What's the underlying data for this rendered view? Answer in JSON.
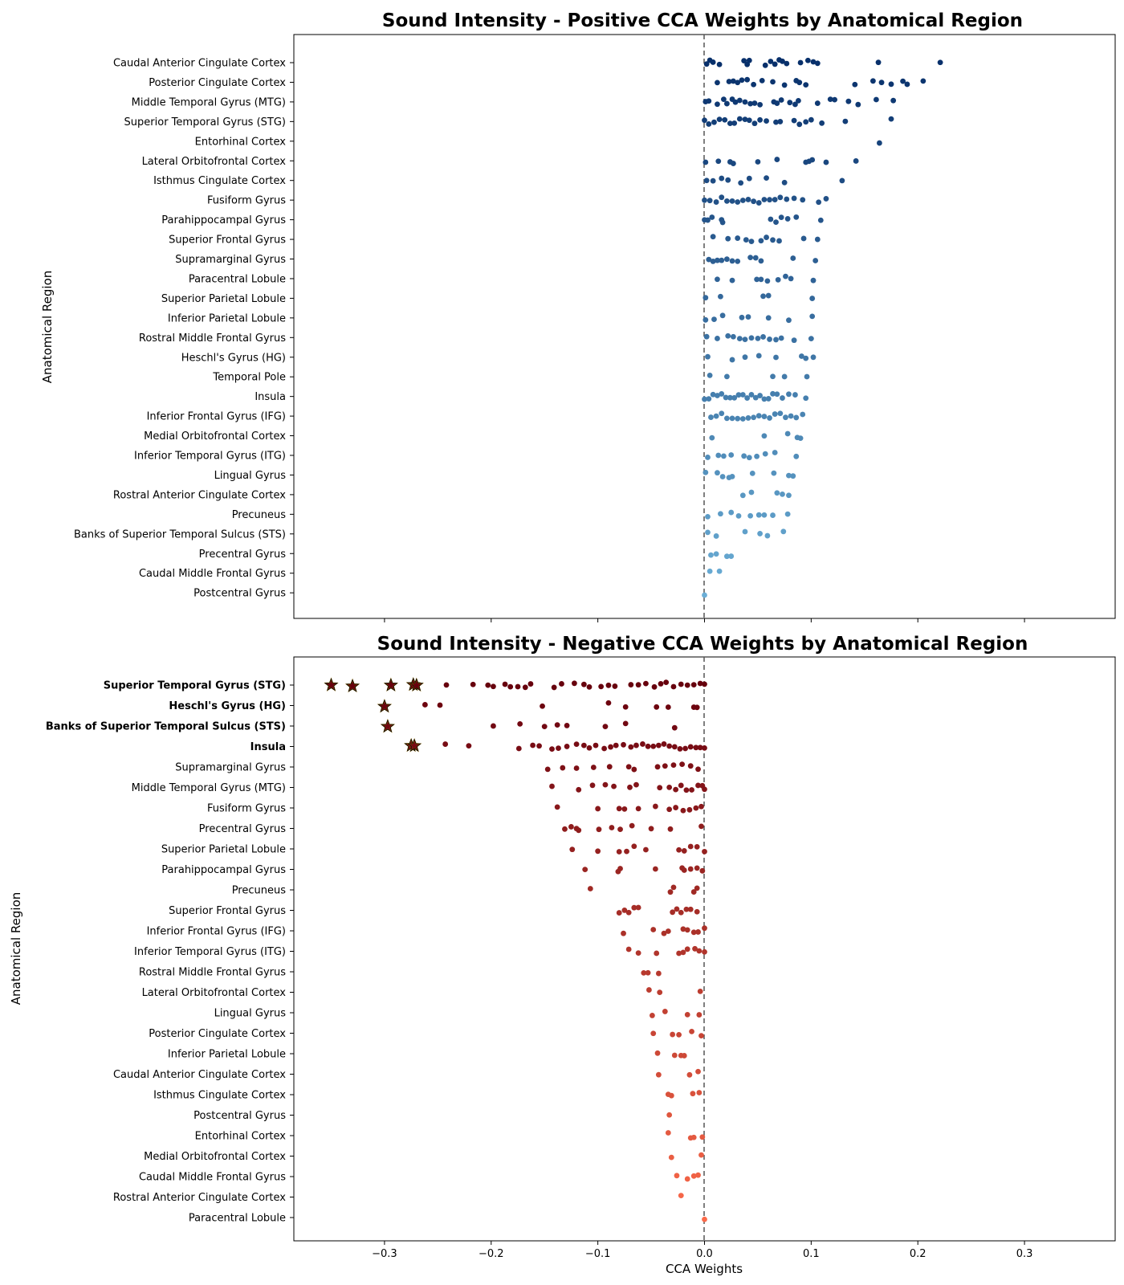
{
  "chart_data": [
    {
      "type": "scatter",
      "title": "Sound Intensity - Positive CCA Weights by Anatomical Region",
      "xlabel": "",
      "ylabel": "Anatomical Region",
      "xlim": [
        -0.385,
        0.385
      ],
      "xticks": [],
      "ref_line_x": 0,
      "color_dark": "#08306b",
      "color_light": "#6baed6",
      "regions": [
        {
          "name": "Caudal Anterior Cingulate Cortex",
          "values": [
            0.002,
            0.005,
            0.008,
            0.014,
            0.037,
            0.04,
            0.042,
            0.057,
            0.062,
            0.066,
            0.07,
            0.073,
            0.077,
            0.09,
            0.097,
            0.102,
            0.106,
            0.163,
            0.221
          ]
        },
        {
          "name": "Posterior Cingulate Cortex",
          "values": [
            0.012,
            0.023,
            0.027,
            0.031,
            0.035,
            0.04,
            0.046,
            0.054,
            0.064,
            0.075,
            0.086,
            0.089,
            0.095,
            0.141,
            0.158,
            0.166,
            0.175,
            0.186,
            0.19,
            0.205
          ]
        },
        {
          "name": "Middle Temporal Gyrus (MTG)",
          "values": [
            0.001,
            0.004,
            0.012,
            0.018,
            0.021,
            0.026,
            0.029,
            0.033,
            0.038,
            0.043,
            0.047,
            0.052,
            0.065,
            0.068,
            0.072,
            0.08,
            0.085,
            0.088,
            0.106,
            0.118,
            0.122,
            0.135,
            0.144,
            0.161,
            0.177
          ]
        },
        {
          "name": "Superior Temporal Gyrus (STG)",
          "values": [
            0.0,
            0.004,
            0.009,
            0.014,
            0.019,
            0.024,
            0.028,
            0.033,
            0.038,
            0.042,
            0.047,
            0.052,
            0.058,
            0.067,
            0.071,
            0.084,
            0.089,
            0.095,
            0.1,
            0.11,
            0.132,
            0.175
          ]
        },
        {
          "name": "Entorhinal Cortex",
          "values": [
            0.164
          ]
        },
        {
          "name": "Lateral Orbitofrontal Cortex",
          "values": [
            0.001,
            0.013,
            0.024,
            0.027,
            0.05,
            0.068,
            0.095,
            0.098,
            0.101,
            0.114,
            0.142
          ]
        },
        {
          "name": "Isthmus Cingulate Cortex",
          "values": [
            0.002,
            0.008,
            0.016,
            0.022,
            0.034,
            0.042,
            0.058,
            0.075,
            0.129
          ]
        },
        {
          "name": "Fusiform Gyrus",
          "values": [
            0.0,
            0.005,
            0.011,
            0.016,
            0.021,
            0.026,
            0.031,
            0.036,
            0.041,
            0.046,
            0.051,
            0.056,
            0.061,
            0.066,
            0.071,
            0.077,
            0.084,
            0.092,
            0.107,
            0.114
          ]
        },
        {
          "name": "Parahippocampal Gyrus",
          "values": [
            0.0,
            0.003,
            0.007,
            0.016,
            0.017,
            0.062,
            0.067,
            0.072,
            0.078,
            0.086,
            0.109
          ]
        },
        {
          "name": "Superior Frontal Gyrus",
          "values": [
            0.008,
            0.022,
            0.031,
            0.039,
            0.044,
            0.053,
            0.058,
            0.064,
            0.07,
            0.093,
            0.106
          ]
        },
        {
          "name": "Supramarginal Gyrus",
          "values": [
            0.004,
            0.008,
            0.012,
            0.016,
            0.021,
            0.026,
            0.031,
            0.043,
            0.048,
            0.053,
            0.083,
            0.104
          ]
        },
        {
          "name": "Paracentral Lobule",
          "values": [
            0.012,
            0.026,
            0.049,
            0.053,
            0.059,
            0.069,
            0.076,
            0.081,
            0.102
          ]
        },
        {
          "name": "Superior Parietal Lobule",
          "values": [
            0.001,
            0.015,
            0.055,
            0.06,
            0.101
          ]
        },
        {
          "name": "Inferior Parietal Lobule",
          "values": [
            0.001,
            0.009,
            0.017,
            0.035,
            0.041,
            0.06,
            0.079,
            0.101
          ]
        },
        {
          "name": "Rostral Middle Frontal Gyrus",
          "values": [
            0.002,
            0.012,
            0.022,
            0.027,
            0.033,
            0.038,
            0.044,
            0.05,
            0.055,
            0.061,
            0.067,
            0.072,
            0.084,
            0.1
          ]
        },
        {
          "name": "Heschl's Gyrus (HG)",
          "values": [
            0.003,
            0.026,
            0.038,
            0.051,
            0.067,
            0.091,
            0.095,
            0.102
          ]
        },
        {
          "name": "Temporal Pole",
          "values": [
            0.005,
            0.021,
            0.064,
            0.075,
            0.096
          ]
        },
        {
          "name": "Insula",
          "values": [
            0.0,
            0.004,
            0.008,
            0.012,
            0.016,
            0.02,
            0.024,
            0.028,
            0.032,
            0.036,
            0.04,
            0.044,
            0.048,
            0.052,
            0.056,
            0.06,
            0.064,
            0.068,
            0.073,
            0.079,
            0.085,
            0.095
          ]
        },
        {
          "name": "Inferior Frontal Gyrus (IFG)",
          "values": [
            0.006,
            0.011,
            0.016,
            0.021,
            0.026,
            0.031,
            0.036,
            0.041,
            0.046,
            0.051,
            0.056,
            0.061,
            0.066,
            0.071,
            0.076,
            0.081,
            0.086,
            0.092
          ]
        },
        {
          "name": "Medial Orbitofrontal Cortex",
          "values": [
            0.007,
            0.056,
            0.078,
            0.087,
            0.09
          ]
        },
        {
          "name": "Inferior Temporal Gyrus (ITG)",
          "values": [
            0.003,
            0.013,
            0.018,
            0.025,
            0.037,
            0.042,
            0.049,
            0.057,
            0.066,
            0.086
          ]
        },
        {
          "name": "Lingual Gyrus",
          "values": [
            0.001,
            0.012,
            0.017,
            0.023,
            0.026,
            0.045,
            0.065,
            0.079,
            0.083
          ]
        },
        {
          "name": "Rostral Anterior Cingulate Cortex",
          "values": [
            0.036,
            0.044,
            0.068,
            0.073,
            0.079
          ]
        },
        {
          "name": "Precuneus",
          "values": [
            0.003,
            0.015,
            0.025,
            0.032,
            0.043,
            0.051,
            0.056,
            0.064,
            0.078
          ]
        },
        {
          "name": "Banks of Superior Temporal Sulcus (STS)",
          "values": [
            0.003,
            0.011,
            0.038,
            0.052,
            0.059,
            0.074
          ]
        },
        {
          "name": "Precentral Gyrus",
          "values": [
            0.006,
            0.011,
            0.021,
            0.025
          ]
        },
        {
          "name": "Caudal Middle Frontal Gyrus",
          "values": [
            0.005,
            0.014
          ]
        },
        {
          "name": "Postcentral Gyrus",
          "values": [
            0.0
          ]
        }
      ]
    },
    {
      "type": "scatter",
      "title": "Sound Intensity - Negative CCA Weights by Anatomical Region",
      "xlabel": "CCA Weights",
      "ylabel": "Anatomical Region",
      "xlim": [
        -0.385,
        0.385
      ],
      "xticks": [
        "−0.3",
        "−0.2",
        "−0.1",
        "0.0",
        "0.1",
        "0.2",
        "0.3"
      ],
      "xtick_values": [
        -0.3,
        -0.2,
        -0.1,
        0.0,
        0.1,
        0.2,
        0.3
      ],
      "ref_line_x": 0,
      "color_dark": "#67000d",
      "color_light": "#fb6a4a",
      "star_fill": "#b8860b",
      "regions": [
        {
          "name": "Superior Temporal Gyrus (STG)",
          "bold": true,
          "stars": [
            -0.35,
            -0.33,
            -0.294,
            -0.273,
            -0.27
          ],
          "values": [
            -0.242,
            -0.217,
            -0.203,
            -0.198,
            -0.187,
            -0.182,
            -0.175,
            -0.168,
            -0.163,
            -0.141,
            -0.134,
            -0.122,
            -0.113,
            -0.108,
            -0.097,
            -0.09,
            -0.084,
            -0.069,
            -0.062,
            -0.055,
            -0.047,
            -0.041,
            -0.036,
            -0.029,
            -0.022,
            -0.016,
            -0.01,
            -0.004,
            0.0
          ]
        },
        {
          "name": "Heschl's Gyrus (HG)",
          "bold": true,
          "stars": [
            -0.3
          ],
          "values": [
            -0.262,
            -0.248,
            -0.152,
            -0.09,
            -0.074,
            -0.045,
            -0.034,
            -0.01,
            -0.007
          ]
        },
        {
          "name": "Banks of Superior Temporal Sulcus (STS)",
          "bold": true,
          "stars": [
            -0.297
          ],
          "values": [
            -0.198,
            -0.173,
            -0.15,
            -0.138,
            -0.129,
            -0.093,
            -0.074,
            -0.028
          ]
        },
        {
          "name": "Insula",
          "bold": true,
          "stars": [
            -0.275,
            -0.272
          ],
          "values": [
            -0.243,
            -0.221,
            -0.174,
            -0.161,
            -0.155,
            -0.143,
            -0.137,
            -0.129,
            -0.12,
            -0.113,
            -0.108,
            -0.102,
            -0.094,
            -0.088,
            -0.083,
            -0.076,
            -0.069,
            -0.064,
            -0.058,
            -0.053,
            -0.048,
            -0.043,
            -0.038,
            -0.033,
            -0.028,
            -0.023,
            -0.018,
            -0.013,
            -0.008,
            -0.004,
            0.0
          ]
        },
        {
          "name": "Supramarginal Gyrus",
          "values": [
            -0.147,
            -0.133,
            -0.12,
            -0.104,
            -0.089,
            -0.071,
            -0.066,
            -0.044,
            -0.037,
            -0.029,
            -0.021,
            -0.013,
            -0.006
          ]
        },
        {
          "name": "Middle Temporal Gyrus (MTG)",
          "values": [
            -0.143,
            -0.118,
            -0.105,
            -0.093,
            -0.085,
            -0.07,
            -0.064,
            -0.042,
            -0.033,
            -0.027,
            -0.022,
            -0.017,
            -0.012,
            -0.006,
            -0.002,
            0.0
          ]
        },
        {
          "name": "Fusiform Gyrus",
          "values": [
            -0.138,
            -0.1,
            -0.08,
            -0.075,
            -0.062,
            -0.046,
            -0.033,
            -0.027,
            -0.02,
            -0.014,
            -0.008,
            -0.003
          ]
        },
        {
          "name": "Precentral Gyrus",
          "values": [
            -0.131,
            -0.125,
            -0.12,
            -0.118,
            -0.099,
            -0.087,
            -0.079,
            -0.068,
            -0.05,
            -0.032,
            -0.003
          ]
        },
        {
          "name": "Superior Parietal Lobule",
          "values": [
            -0.124,
            -0.1,
            -0.08,
            -0.073,
            -0.066,
            -0.055,
            -0.024,
            -0.019,
            -0.013,
            -0.007,
            0.0
          ]
        },
        {
          "name": "Parahippocampal Gyrus",
          "values": [
            -0.112,
            -0.081,
            -0.079,
            -0.046,
            -0.021,
            -0.019,
            -0.013,
            -0.007,
            -0.002
          ]
        },
        {
          "name": "Precuneus",
          "values": [
            -0.107,
            -0.032,
            -0.029,
            -0.01,
            -0.007
          ]
        },
        {
          "name": "Superior Frontal Gyrus",
          "values": [
            -0.08,
            -0.075,
            -0.071,
            -0.066,
            -0.062,
            -0.03,
            -0.026,
            -0.022,
            -0.017,
            -0.013,
            -0.007
          ]
        },
        {
          "name": "Inferior Frontal Gyrus (IFG)",
          "values": [
            -0.076,
            -0.048,
            -0.038,
            -0.034,
            -0.02,
            -0.016,
            -0.01,
            -0.006,
            0.0
          ]
        },
        {
          "name": "Inferior Temporal Gyrus (ITG)",
          "values": [
            -0.071,
            -0.062,
            -0.045,
            -0.024,
            -0.02,
            -0.016,
            -0.009,
            -0.005,
            0.0
          ]
        },
        {
          "name": "Rostral Middle Frontal Gyrus",
          "values": [
            -0.057,
            -0.053,
            -0.043
          ]
        },
        {
          "name": "Lateral Orbitofrontal Cortex",
          "values": [
            -0.052,
            -0.042,
            -0.004
          ]
        },
        {
          "name": "Lingual Gyrus",
          "values": [
            -0.049,
            -0.037,
            -0.016,
            -0.005
          ]
        },
        {
          "name": "Posterior Cingulate Cortex",
          "values": [
            -0.048,
            -0.03,
            -0.024,
            -0.012,
            -0.003
          ]
        },
        {
          "name": "Inferior Parietal Lobule",
          "values": [
            -0.044,
            -0.028,
            -0.022,
            -0.019
          ]
        },
        {
          "name": "Caudal Anterior Cingulate Cortex",
          "values": [
            -0.043,
            -0.014,
            -0.006
          ]
        },
        {
          "name": "Isthmus Cingulate Cortex",
          "values": [
            -0.034,
            -0.031,
            -0.011,
            -0.005
          ]
        },
        {
          "name": "Postcentral Gyrus",
          "values": [
            -0.033
          ]
        },
        {
          "name": "Entorhinal Cortex",
          "values": [
            -0.034,
            -0.013,
            -0.01,
            -0.002
          ]
        },
        {
          "name": "Medial Orbitofrontal Cortex",
          "values": [
            -0.031,
            -0.003
          ]
        },
        {
          "name": "Caudal Middle Frontal Gyrus",
          "values": [
            -0.026,
            -0.016,
            -0.01,
            -0.006
          ]
        },
        {
          "name": "Rostral Anterior Cingulate Cortex",
          "values": [
            -0.022
          ]
        },
        {
          "name": "Paracentral Lobule",
          "values": [
            0.0
          ]
        }
      ]
    }
  ]
}
